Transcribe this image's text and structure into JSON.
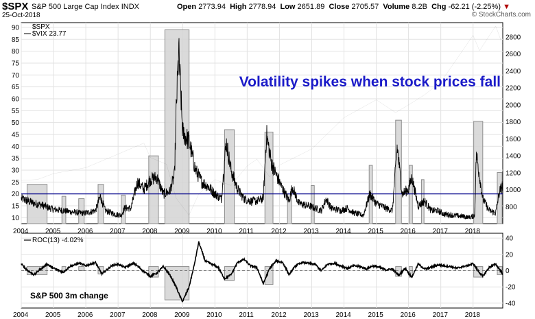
{
  "header": {
    "symbol": "$SPX",
    "name": "S&P 500 Large Cap Index",
    "exchange": "INDX",
    "date": "25-Oct-2018",
    "watermark": "© StockCharts.com",
    "open_label": "Open",
    "open": "2773.94",
    "high_label": "High",
    "high": "2778.94",
    "low_label": "Low",
    "low": "2651.89",
    "close_label": "Close",
    "close": "2705.57",
    "volume_label": "Volume",
    "volume": "8.2B",
    "chg_label": "Chg",
    "chg": "-62.21 (-2.25%)"
  },
  "chart_data": [
    {
      "type": "line",
      "legend": [
        "$SPX",
        "$VIX 23.77"
      ],
      "annotation": "Volatility spikes when stock prices fall",
      "left_axis_ticks": [
        10,
        15,
        20,
        25,
        30,
        35,
        40,
        45,
        50,
        55,
        60,
        65,
        70,
        75,
        80,
        85,
        90
      ],
      "right_axis_ticks": [
        800,
        1000,
        1200,
        1400,
        1600,
        1800,
        2000,
        2200,
        2400,
        2600,
        2800
      ],
      "ylim_left": [
        7.5,
        92
      ],
      "ylim_right": [
        600,
        2970
      ],
      "x_labels": [
        "2004",
        "2005",
        "2006",
        "2007",
        "2008",
        "2009",
        "2010",
        "2011",
        "2012",
        "2013",
        "2014",
        "2015",
        "2016",
        "2017",
        "2018"
      ],
      "xlim": [
        2004.0,
        2018.92
      ],
      "reference_line": 20,
      "grid": true,
      "series": [
        {
          "name": "$VIX 23.77",
          "color": "#000000",
          "x": [
            2004.0,
            2004.2,
            2004.4,
            2004.6,
            2004.8,
            2005.0,
            2005.3,
            2005.5,
            2005.8,
            2006.0,
            2006.3,
            2006.45,
            2006.6,
            2006.9,
            2007.1,
            2007.2,
            2007.4,
            2007.6,
            2007.8,
            2008.0,
            2008.2,
            2008.4,
            2008.6,
            2008.75,
            2008.8,
            2008.88,
            2009.0,
            2009.2,
            2009.4,
            2009.6,
            2009.8,
            2010.0,
            2010.2,
            2010.35,
            2010.5,
            2010.7,
            2010.9,
            2011.1,
            2011.3,
            2011.5,
            2011.6,
            2011.75,
            2011.9,
            2012.1,
            2012.3,
            2012.4,
            2012.6,
            2012.9,
            2013.1,
            2013.3,
            2013.45,
            2013.6,
            2013.9,
            2014.1,
            2014.3,
            2014.6,
            2014.8,
            2015.0,
            2015.3,
            2015.5,
            2015.65,
            2015.8,
            2016.0,
            2016.1,
            2016.3,
            2016.5,
            2016.7,
            2016.9,
            2017.1,
            2017.4,
            2017.7,
            2017.9,
            2018.05,
            2018.1,
            2018.3,
            2018.5,
            2018.7,
            2018.82,
            2018.92
          ],
          "values": [
            18,
            17,
            16,
            15.5,
            14.5,
            13.5,
            13,
            12.5,
            12,
            12,
            13,
            19,
            13,
            11.5,
            11,
            14,
            14,
            25,
            22,
            26,
            27,
            20,
            21,
            28,
            55,
            80,
            46,
            42,
            30,
            25,
            23,
            20,
            18,
            42,
            30,
            22,
            18,
            17,
            17,
            18,
            45,
            33,
            28,
            22,
            17,
            23,
            16,
            15,
            14,
            13,
            18,
            14,
            13,
            14,
            12,
            11,
            20,
            16,
            14,
            13,
            40,
            20,
            22,
            27,
            15,
            17,
            13,
            13,
            11.5,
            11,
            10.5,
            10,
            11,
            37,
            18,
            13,
            12,
            21,
            23.77
          ]
        },
        {
          "name": "$SPX",
          "color": "#000000",
          "x": [
            2004.0,
            2004.5,
            2005.0,
            2006.0,
            2007.0,
            2007.8,
            2008.0,
            2008.5,
            2008.8,
            2009.2,
            2009.5,
            2010.0,
            2010.5,
            2011.0,
            2011.3,
            2011.7,
            2012.0,
            2013.0,
            2014.0,
            2015.0,
            2015.6,
            2016.0,
            2016.5,
            2017.0,
            2018.0,
            2018.2,
            2018.7,
            2018.92
          ],
          "values": [
            1110,
            1120,
            1190,
            1260,
            1420,
            1550,
            1380,
            1300,
            900,
            700,
            950,
            1120,
            1050,
            1280,
            1360,
            1150,
            1290,
            1480,
            1850,
            2060,
            1910,
            2000,
            2120,
            2270,
            2820,
            2640,
            2930,
            2706
          ]
        }
      ],
      "highlight_boxes": [
        {
          "start": 2004.18,
          "end": 2004.8,
          "top": 24
        },
        {
          "start": 2005.26,
          "end": 2005.38,
          "top": 19
        },
        {
          "start": 2005.78,
          "end": 2005.95,
          "top": 18
        },
        {
          "start": 2006.38,
          "end": 2006.55,
          "top": 24
        },
        {
          "start": 2007.1,
          "end": 2007.22,
          "top": 19.5
        },
        {
          "start": 2007.95,
          "end": 2008.25,
          "top": 36
        },
        {
          "start": 2008.45,
          "end": 2009.2,
          "top": 89
        },
        {
          "start": 2010.3,
          "end": 2010.6,
          "top": 47
        },
        {
          "start": 2011.55,
          "end": 2011.8,
          "top": 46
        },
        {
          "start": 2012.25,
          "end": 2012.38,
          "top": 20
        },
        {
          "start": 2012.98,
          "end": 2013.08,
          "top": 23.5
        },
        {
          "start": 2014.78,
          "end": 2014.88,
          "top": 32
        },
        {
          "start": 2015.6,
          "end": 2015.78,
          "top": 51
        },
        {
          "start": 2016.02,
          "end": 2016.12,
          "top": 32
        },
        {
          "start": 2016.4,
          "end": 2016.48,
          "top": 26
        },
        {
          "start": 2018.02,
          "end": 2018.3,
          "top": 50.5
        },
        {
          "start": 2018.75,
          "end": 2018.9,
          "top": 29
        }
      ]
    },
    {
      "type": "line",
      "legend_label": "ROC(13) -4.02%",
      "annotation": "S&P 500 3m change",
      "right_axis_ticks": [
        40,
        20,
        0,
        -20,
        -40
      ],
      "ylim": [
        -46,
        46
      ],
      "x_labels": [
        "2004",
        "2005",
        "2006",
        "2007",
        "2008",
        "2009",
        "2010",
        "2011",
        "2012",
        "2013",
        "2014",
        "2015",
        "2016",
        "2017",
        "2018"
      ],
      "xlim": [
        2004.0,
        2018.92
      ],
      "reference_line": 0,
      "grid": true,
      "series": [
        {
          "name": "ROC(13) -4.02%",
          "color": "#000000",
          "x": [
            2004.0,
            2004.2,
            2004.4,
            2004.6,
            2004.8,
            2005.0,
            2005.3,
            2005.5,
            2005.8,
            2006.0,
            2006.3,
            2006.5,
            2006.8,
            2007.0,
            2007.2,
            2007.5,
            2007.8,
            2008.0,
            2008.2,
            2008.4,
            2008.6,
            2008.8,
            2008.9,
            2009.0,
            2009.2,
            2009.35,
            2009.5,
            2009.7,
            2009.9,
            2010.1,
            2010.3,
            2010.5,
            2010.7,
            2010.9,
            2011.1,
            2011.3,
            2011.5,
            2011.7,
            2011.9,
            2012.1,
            2012.3,
            2012.5,
            2012.7,
            2012.9,
            2013.1,
            2013.3,
            2013.5,
            2013.7,
            2013.9,
            2014.1,
            2014.3,
            2014.5,
            2014.7,
            2014.9,
            2015.1,
            2015.3,
            2015.5,
            2015.7,
            2015.9,
            2016.1,
            2016.3,
            2016.5,
            2016.7,
            2016.9,
            2017.1,
            2017.3,
            2017.5,
            2017.7,
            2017.9,
            2018.0,
            2018.15,
            2018.3,
            2018.5,
            2018.7,
            2018.85,
            2018.92
          ],
          "values": [
            8,
            0,
            -5,
            2,
            8,
            3,
            -2,
            5,
            9,
            6,
            10,
            -4,
            6,
            8,
            4,
            9,
            -1,
            -7,
            -3,
            5,
            -5,
            -20,
            -30,
            -38,
            -20,
            5,
            35,
            12,
            8,
            4,
            -10,
            -5,
            10,
            14,
            6,
            4,
            -16,
            3,
            12,
            10,
            -5,
            6,
            10,
            9,
            8,
            0,
            8,
            9,
            6,
            3,
            6,
            5,
            2,
            6,
            4,
            1,
            2,
            -6,
            3,
            -8,
            8,
            2,
            4,
            7,
            6,
            5,
            3,
            5,
            7,
            9,
            0,
            -7,
            4,
            8,
            0,
            -4.02
          ]
        }
      ],
      "highlight_boxes": [
        {
          "start": 2004.18,
          "end": 2004.8,
          "top": -5,
          "bottom_value": 5
        },
        {
          "start": 2005.26,
          "end": 2005.38,
          "top": 0,
          "bottom_value": 5
        },
        {
          "start": 2005.78,
          "end": 2005.95,
          "top": 0,
          "bottom_value": 5
        },
        {
          "start": 2006.38,
          "end": 2006.55,
          "top": -4,
          "bottom_value": 5
        },
        {
          "start": 2007.95,
          "end": 2008.25,
          "top": -8,
          "bottom_value": 5
        },
        {
          "start": 2008.45,
          "end": 2009.2,
          "top": -36,
          "bottom_value": 5
        },
        {
          "start": 2010.3,
          "end": 2010.6,
          "top": -12,
          "bottom_value": 5
        },
        {
          "start": 2011.55,
          "end": 2011.8,
          "top": -17,
          "bottom_value": 5
        },
        {
          "start": 2015.6,
          "end": 2015.78,
          "top": -7,
          "bottom_value": 5
        },
        {
          "start": 2016.02,
          "end": 2016.12,
          "top": -8,
          "bottom_value": 5
        },
        {
          "start": 2018.02,
          "end": 2018.3,
          "top": -8,
          "bottom_value": 5
        },
        {
          "start": 2018.75,
          "end": 2018.9,
          "top": -5,
          "bottom_value": 5
        }
      ]
    }
  ]
}
